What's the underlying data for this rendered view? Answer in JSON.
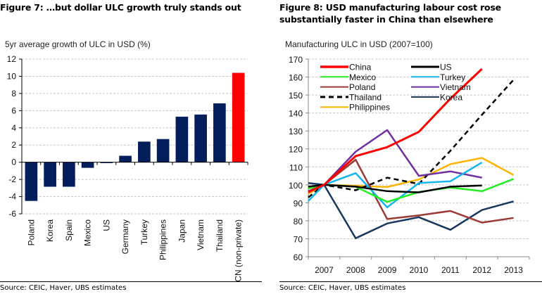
{
  "left_figure": {
    "title": "Figure 7: …but dollar ULC growth truly stands out",
    "source": "Source:  CEIC, Haver, UBS estimates"
  },
  "right_figure": {
    "title_line1": "Figure 8: USD manufacturing labour cost rose",
    "title_line2": "substantially faster in China than elsewhere",
    "source": "Source:  CEIC, Haver, UBS estimates"
  },
  "chart_data": [
    {
      "type": "bar",
      "title": "5yr average growth of ULC in USD (%)",
      "xlabel": "",
      "ylabel": "",
      "ylim": [
        -6,
        12
      ],
      "yticks": [
        12,
        10,
        8,
        6,
        4,
        2,
        0,
        -2,
        -4,
        -6
      ],
      "grid": true,
      "categories": [
        "Poland",
        "Korea",
        "Spain",
        "Mexico",
        "US",
        "Germany",
        "Turkey",
        "Philippines",
        "Japan",
        "Vietnam",
        "Thailand",
        "CN (non-private)"
      ],
      "values": [
        -4.5,
        -2.85,
        -2.85,
        -0.65,
        -0.1,
        0.75,
        2.4,
        2.7,
        5.3,
        5.55,
        6.85,
        10.4
      ],
      "colors": [
        "#041e5c",
        "#041e5c",
        "#041e5c",
        "#041e5c",
        "#041e5c",
        "#041e5c",
        "#041e5c",
        "#041e5c",
        "#041e5c",
        "#041e5c",
        "#041e5c",
        "#ff0000"
      ]
    },
    {
      "type": "line",
      "title": "Manufacturing ULC in USD (2007=100)",
      "xlabel": "",
      "ylabel": "",
      "ylim": [
        60,
        170
      ],
      "yticks": [
        170,
        160,
        150,
        140,
        130,
        120,
        110,
        100,
        90,
        80,
        70,
        60
      ],
      "grid": true,
      "legend_position": "top-left",
      "categories": [
        "2007",
        "2008",
        "2009",
        "2010",
        "2011",
        "2012",
        "2013"
      ],
      "note": "each series begins with one earlier point at the left axis edge (start value), then one point per year",
      "series": [
        {
          "name": "China",
          "color": "#ff0000",
          "dashed": false,
          "width": 3,
          "start": 96,
          "values": [
            100,
            116,
            121,
            129.5,
            148,
            164.5,
            null
          ]
        },
        {
          "name": "US",
          "color": "#000000",
          "dashed": false,
          "width": 2.5,
          "start": 99,
          "values": [
            100,
            99,
            96.5,
            95.8,
            99,
            99.6,
            null
          ]
        },
        {
          "name": "Mexico",
          "color": "#22ee22",
          "dashed": false,
          "width": 2.5,
          "start": 98,
          "values": [
            100,
            99,
            90.5,
            96,
            98.5,
            96.5,
            103.3
          ]
        },
        {
          "name": "Turkey",
          "color": "#14b4ee",
          "dashed": false,
          "width": 2.5,
          "start": 91,
          "values": [
            100,
            106.5,
            87.5,
            101,
            102,
            112.5,
            null
          ]
        },
        {
          "name": "Poland",
          "color": "#9b3a36",
          "dashed": false,
          "width": 2.5,
          "start": 96,
          "values": [
            100,
            114,
            81,
            83,
            85.5,
            79,
            81.6
          ]
        },
        {
          "name": "Vietnam",
          "color": "#7030a0",
          "dashed": false,
          "width": 2.5,
          "start": 96.5,
          "values": [
            100,
            118.5,
            130.5,
            105,
            107.5,
            104,
            null
          ]
        },
        {
          "name": "Thailand",
          "color": "#000000",
          "dashed": true,
          "width": 2.5,
          "start": 93,
          "values": [
            100,
            97,
            104,
            100.5,
            119,
            139,
            158.5
          ]
        },
        {
          "name": "Korea",
          "color": "#17375e",
          "dashed": false,
          "width": 2.5,
          "start": 101,
          "values": [
            100,
            70.3,
            78.5,
            82,
            75,
            86,
            90.8
          ]
        },
        {
          "name": "Philippines",
          "color": "#ffb400",
          "dashed": false,
          "width": 2.5,
          "start": 95,
          "values": [
            100,
            99.5,
            98.8,
            103,
            111.5,
            115,
            105.5
          ]
        }
      ]
    }
  ]
}
